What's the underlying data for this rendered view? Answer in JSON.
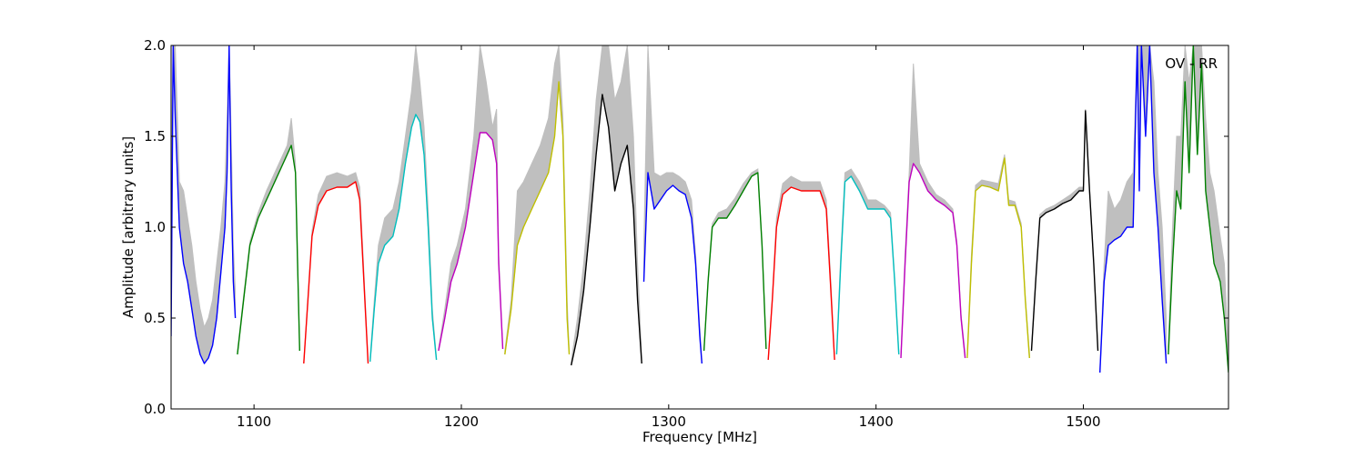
{
  "chart_data": {
    "type": "line",
    "title": "",
    "annotation": "OV - RR",
    "xlabel": "Frequency [MHz]",
    "ylabel": "Amplitude [arbitrary units]",
    "xlim": [
      1060,
      1570
    ],
    "ylim": [
      0.0,
      2.0
    ],
    "xticks": [
      1100,
      1200,
      1300,
      1400,
      1500
    ],
    "xtick_labels": [
      "1100",
      "1200",
      "1300",
      "1400",
      "1500"
    ],
    "yticks": [
      0.0,
      0.5,
      1.0,
      1.5,
      2.0
    ],
    "ytick_labels": [
      "0.0",
      "0.5",
      "1.0",
      "1.5",
      "2.0"
    ],
    "grid": false,
    "envelope_color": "#bfbfbf",
    "series": [
      {
        "color": "#0000ff",
        "x": [
          1060,
          1061,
          1062,
          1064,
          1066,
          1068,
          1070,
          1072,
          1074,
          1076,
          1078,
          1080,
          1082,
          1084,
          1086,
          1087,
          1088,
          1089,
          1090,
          1091
        ],
        "y": [
          0.4,
          2.0,
          1.6,
          1.0,
          0.8,
          0.7,
          0.55,
          0.4,
          0.3,
          0.25,
          0.28,
          0.35,
          0.5,
          0.75,
          1.0,
          1.3,
          2.0,
          1.2,
          0.7,
          0.5
        ],
        "upper": [
          1.3,
          2.0,
          2.0,
          1.25,
          1.2,
          1.05,
          0.9,
          0.7,
          0.55,
          0.45,
          0.5,
          0.6,
          0.8,
          1.0,
          1.25,
          1.6,
          2.0,
          1.5,
          0.9,
          0.65
        ]
      },
      {
        "color": "#008000",
        "x": [
          1092,
          1095,
          1098,
          1102,
          1106,
          1108,
          1112,
          1116,
          1118,
          1120,
          1121,
          1122
        ],
        "y": [
          0.3,
          0.6,
          0.9,
          1.05,
          1.15,
          1.2,
          1.3,
          1.4,
          1.45,
          1.3,
          0.8,
          0.32
        ],
        "upper": [
          0.32,
          0.62,
          0.92,
          1.08,
          1.2,
          1.25,
          1.35,
          1.45,
          1.6,
          1.35,
          0.85,
          0.33
        ]
      },
      {
        "color": "#ff0000",
        "x": [
          1124,
          1126,
          1128,
          1131,
          1135,
          1140,
          1145,
          1149,
          1151,
          1153,
          1155
        ],
        "y": [
          0.25,
          0.6,
          0.95,
          1.12,
          1.2,
          1.22,
          1.22,
          1.25,
          1.15,
          0.7,
          0.25
        ],
        "upper": [
          0.26,
          0.62,
          0.98,
          1.18,
          1.28,
          1.3,
          1.28,
          1.3,
          1.22,
          0.75,
          0.26
        ]
      },
      {
        "color": "#00bfbf",
        "x": [
          1156,
          1158,
          1160,
          1163,
          1167,
          1170,
          1173,
          1176,
          1178,
          1180,
          1182,
          1184,
          1186,
          1188
        ],
        "y": [
          0.26,
          0.55,
          0.8,
          0.9,
          0.95,
          1.1,
          1.35,
          1.55,
          1.62,
          1.58,
          1.4,
          1.0,
          0.5,
          0.27
        ],
        "upper": [
          0.28,
          0.6,
          0.9,
          1.05,
          1.1,
          1.25,
          1.5,
          1.75,
          2.0,
          1.8,
          1.55,
          1.1,
          0.55,
          0.28
        ]
      },
      {
        "color": "#bf00bf",
        "x": [
          1189,
          1192,
          1195,
          1198,
          1202,
          1206,
          1209,
          1212,
          1215,
          1217,
          1218,
          1220
        ],
        "y": [
          0.32,
          0.5,
          0.7,
          0.8,
          1.0,
          1.3,
          1.52,
          1.52,
          1.48,
          1.35,
          0.8,
          0.33
        ],
        "upper": [
          0.33,
          0.55,
          0.8,
          0.9,
          1.1,
          1.5,
          2.0,
          1.8,
          1.55,
          1.65,
          0.85,
          0.34
        ]
      },
      {
        "color": "#bfbf00",
        "x": [
          1221,
          1224,
          1227,
          1230,
          1234,
          1238,
          1242,
          1245,
          1247,
          1249,
          1250,
          1251,
          1252
        ],
        "y": [
          0.3,
          0.55,
          0.9,
          1.0,
          1.1,
          1.2,
          1.3,
          1.5,
          1.8,
          1.5,
          1.0,
          0.5,
          0.3
        ],
        "upper": [
          0.32,
          0.6,
          1.2,
          1.25,
          1.35,
          1.45,
          1.6,
          1.9,
          2.0,
          1.6,
          1.1,
          0.6,
          0.32
        ]
      },
      {
        "color": "#000000",
        "x": [
          1253,
          1256,
          1259,
          1262,
          1265,
          1268,
          1271,
          1274,
          1277,
          1280,
          1283,
          1285,
          1287
        ],
        "y": [
          0.24,
          0.4,
          0.65,
          1.0,
          1.4,
          1.73,
          1.55,
          1.2,
          1.35,
          1.45,
          1.1,
          0.6,
          0.25
        ],
        "upper": [
          0.26,
          0.5,
          0.8,
          1.2,
          1.7,
          2.0,
          2.0,
          1.7,
          1.8,
          2.0,
          1.5,
          0.8,
          0.28
        ]
      },
      {
        "color": "#0000ff",
        "x": [
          1288,
          1290,
          1293,
          1296,
          1299,
          1302,
          1305,
          1308,
          1311,
          1313,
          1315,
          1316
        ],
        "y": [
          0.7,
          1.3,
          1.1,
          1.15,
          1.2,
          1.23,
          1.2,
          1.18,
          1.05,
          0.8,
          0.4,
          0.25
        ],
        "upper": [
          0.9,
          2.0,
          1.3,
          1.28,
          1.3,
          1.3,
          1.28,
          1.25,
          1.15,
          0.85,
          0.45,
          0.27
        ]
      },
      {
        "color": "#008000",
        "x": [
          1317,
          1319,
          1321,
          1324,
          1328,
          1332,
          1336,
          1340,
          1343,
          1345,
          1347
        ],
        "y": [
          0.32,
          0.7,
          1.0,
          1.05,
          1.05,
          1.12,
          1.2,
          1.28,
          1.3,
          0.9,
          0.33
        ],
        "upper": [
          0.33,
          0.72,
          1.02,
          1.08,
          1.1,
          1.16,
          1.24,
          1.3,
          1.32,
          0.92,
          0.34
        ]
      },
      {
        "color": "#ff0000",
        "x": [
          1348,
          1350,
          1352,
          1355,
          1359,
          1364,
          1369,
          1373,
          1376,
          1378,
          1380
        ],
        "y": [
          0.27,
          0.6,
          1.0,
          1.18,
          1.22,
          1.2,
          1.2,
          1.2,
          1.1,
          0.7,
          0.27
        ],
        "upper": [
          0.28,
          0.62,
          1.05,
          1.24,
          1.28,
          1.25,
          1.25,
          1.25,
          1.15,
          0.75,
          0.28
        ]
      },
      {
        "color": "#00bfbf",
        "x": [
          1381,
          1383,
          1385,
          1388,
          1392,
          1396,
          1400,
          1404,
          1407,
          1409,
          1411
        ],
        "y": [
          0.3,
          0.8,
          1.25,
          1.28,
          1.2,
          1.1,
          1.1,
          1.1,
          1.05,
          0.7,
          0.3
        ],
        "upper": [
          0.32,
          0.85,
          1.3,
          1.32,
          1.25,
          1.15,
          1.15,
          1.12,
          1.08,
          0.72,
          0.32
        ]
      },
      {
        "color": "#bf00bf",
        "x": [
          1412,
          1414,
          1416,
          1418,
          1421,
          1425,
          1429,
          1433,
          1437,
          1439,
          1441,
          1443
        ],
        "y": [
          0.28,
          0.8,
          1.25,
          1.35,
          1.3,
          1.2,
          1.15,
          1.12,
          1.08,
          0.9,
          0.5,
          0.28
        ],
        "upper": [
          0.3,
          0.85,
          1.3,
          1.9,
          1.35,
          1.25,
          1.18,
          1.15,
          1.1,
          0.92,
          0.52,
          0.3
        ]
      },
      {
        "color": "#bfbf00",
        "x": [
          1444,
          1446,
          1448,
          1451,
          1455,
          1459,
          1462,
          1464,
          1467,
          1470,
          1472,
          1474
        ],
        "y": [
          0.28,
          0.8,
          1.2,
          1.23,
          1.22,
          1.2,
          1.38,
          1.12,
          1.12,
          1.0,
          0.6,
          0.28
        ],
        "upper": [
          0.3,
          0.85,
          1.23,
          1.26,
          1.25,
          1.24,
          1.4,
          1.15,
          1.14,
          1.02,
          0.62,
          0.3
        ]
      },
      {
        "color": "#000000",
        "x": [
          1475,
          1477,
          1479,
          1482,
          1486,
          1490,
          1494,
          1498,
          1500,
          1501,
          1503,
          1505,
          1507
        ],
        "y": [
          0.32,
          0.7,
          1.05,
          1.08,
          1.1,
          1.13,
          1.15,
          1.2,
          1.2,
          1.64,
          1.2,
          0.8,
          0.32
        ],
        "upper": [
          0.33,
          0.72,
          1.07,
          1.1,
          1.12,
          1.15,
          1.18,
          1.22,
          1.22,
          1.65,
          1.22,
          0.82,
          0.33
        ]
      },
      {
        "color": "#0000ff",
        "x": [
          1508,
          1510,
          1512,
          1515,
          1518,
          1521,
          1524,
          1526,
          1527,
          1528,
          1530,
          1532,
          1534,
          1536,
          1538,
          1540
        ],
        "y": [
          0.2,
          0.7,
          0.9,
          0.93,
          0.95,
          1.0,
          1.0,
          2.0,
          1.2,
          2.0,
          1.5,
          2.0,
          1.3,
          1.0,
          0.6,
          0.25
        ],
        "upper": [
          0.22,
          0.8,
          1.2,
          1.1,
          1.15,
          1.25,
          1.3,
          2.0,
          2.0,
          2.0,
          2.0,
          2.0,
          1.8,
          1.3,
          1.0,
          0.5
        ]
      },
      {
        "color": "#008000",
        "x": [
          1541,
          1543,
          1545,
          1547,
          1549,
          1551,
          1553,
          1555,
          1557,
          1559,
          1561,
          1563,
          1566,
          1568,
          1570
        ],
        "y": [
          0.3,
          0.8,
          1.2,
          1.1,
          1.8,
          1.3,
          2.0,
          1.4,
          1.9,
          1.2,
          1.0,
          0.8,
          0.7,
          0.5,
          0.2
        ],
        "upper": [
          0.35,
          1.0,
          1.5,
          1.5,
          2.0,
          1.8,
          2.0,
          2.0,
          2.0,
          1.6,
          1.3,
          1.2,
          0.95,
          0.8,
          0.3
        ]
      }
    ]
  }
}
